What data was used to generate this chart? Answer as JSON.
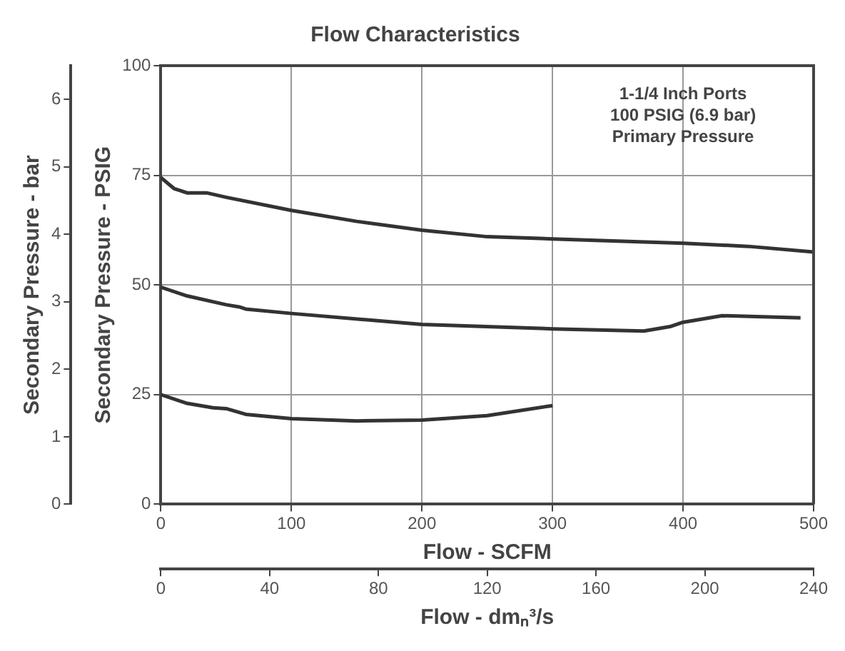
{
  "chart_data": {
    "type": "line",
    "title": "Flow Characteristics",
    "xlabel": "Flow - SCFM",
    "x2label": "Flow - dmₙ³/s",
    "ylabel": "Secondary Pressure - PSIG",
    "y2label": "Secondary Pressure - bar",
    "annotations": [
      "1-1/4 Inch Ports\n100 PSIG (6.9 bar)\nPrimary Pressure"
    ],
    "xlim": [
      0,
      500
    ],
    "xticks": [
      0,
      100,
      200,
      300,
      400,
      500
    ],
    "x2lim": [
      0,
      240
    ],
    "x2ticks": [
      0,
      40,
      80,
      120,
      160,
      200,
      240
    ],
    "ylim": [
      0,
      100
    ],
    "yticks": [
      0,
      25,
      50,
      75,
      100
    ],
    "y2lim": [
      0,
      6.5
    ],
    "y2ticks": [
      0,
      1,
      2,
      3,
      4,
      5,
      6
    ],
    "grid": true,
    "legend": false,
    "marker": "none",
    "line_style": "solid",
    "series": [
      {
        "color": "#333333",
        "x": [
          0,
          10,
          20,
          35,
          50,
          100,
          150,
          200,
          250,
          300,
          350,
          400,
          450,
          500
        ],
        "values": [
          74.5,
          72,
          71,
          71,
          70,
          67,
          64.5,
          62.5,
          61,
          60.5,
          60,
          59.5,
          58.8,
          57.5
        ]
      },
      {
        "color": "#333333",
        "x": [
          0,
          20,
          50,
          60,
          65,
          100,
          200,
          300,
          370,
          390,
          400,
          430,
          490
        ],
        "values": [
          49.5,
          47.5,
          45.5,
          45,
          44.5,
          43.5,
          41,
          40,
          39.5,
          40.5,
          41.5,
          43,
          42.5
        ]
      },
      {
        "color": "#333333",
        "x": [
          0,
          20,
          40,
          50,
          65,
          100,
          150,
          200,
          250,
          300
        ],
        "values": [
          25,
          23,
          22,
          21.8,
          20.5,
          19.5,
          19,
          19.2,
          20.2,
          22.5
        ]
      }
    ]
  }
}
